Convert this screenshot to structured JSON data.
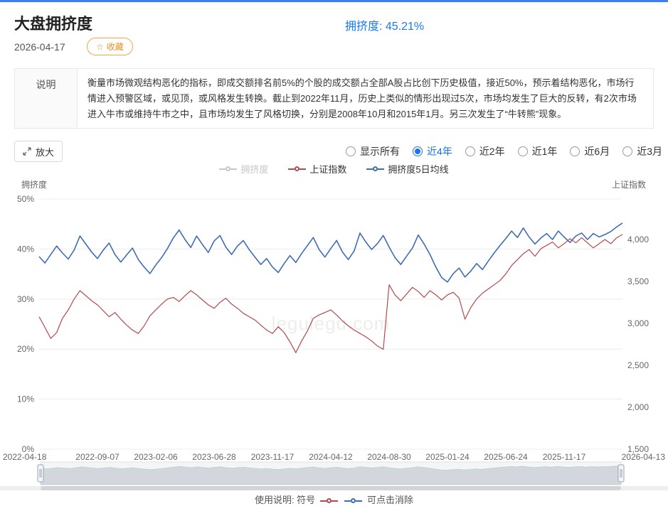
{
  "page": {
    "title": "大盘拥挤度",
    "date": "2026-04-17",
    "favorite": {
      "icon": "☆",
      "label": "收藏"
    },
    "header_value": "拥挤度: 45.21%",
    "accent_blue": "#1a7af8"
  },
  "description": {
    "label": "说明",
    "text": "衡量市场微观结构恶化的指标，即成交额排名前5%的个股的成交额占全部A股占比创下历史极值，接近50%，预示着结构恶化，市场行情进入预警区域，或见顶，或风格发生转换。截止到2022年11月，历史上类似的情形出现过5次，市场均发生了巨大的反转，有2次市场进入牛市或维持牛市之中，且市场均发生了风格切换，分别是2008年10月和2015年1月。另三次发生了“牛转熊”现象。"
  },
  "toolbar": {
    "zoom_label": "放大",
    "ranges": [
      {
        "label": "显示所有",
        "selected": false
      },
      {
        "label": "近4年",
        "selected": true
      },
      {
        "label": "近2年",
        "selected": false
      },
      {
        "label": "近1年",
        "selected": false
      },
      {
        "label": "近6月",
        "selected": false
      },
      {
        "label": "近3月",
        "selected": false
      }
    ]
  },
  "legend": [
    {
      "label": "拥挤度",
      "color": "#c6c6c6",
      "disabled": true
    },
    {
      "label": "上证指数",
      "color": "#b5494d",
      "disabled": false
    },
    {
      "label": "拥挤度5日均线",
      "color": "#3e6db5",
      "disabled": false
    }
  ],
  "chart_data": {
    "type": "line",
    "title": "大盘拥挤度",
    "watermark": "legulegu.com",
    "grid": true,
    "left_axis": {
      "label": "拥挤度",
      "min": 0,
      "max": 50,
      "ticks": [
        "0%",
        "10%",
        "20%",
        "30%",
        "40%",
        "50%"
      ]
    },
    "right_axis": {
      "label": "上证指数",
      "min": 1500,
      "max": 4483,
      "ticks": [
        "1,500",
        "2,000",
        "2,500",
        "3,000",
        "3,500",
        "4,000"
      ]
    },
    "x_labels": [
      "2022-04-18",
      "2022-09-07",
      "2023-02-06",
      "2023-06-28",
      "2023-11-17",
      "2024-04-12",
      "2024-08-30",
      "2025-01-24",
      "2025-06-24",
      "2025-11-17",
      "2026-04-13"
    ],
    "series": [
      {
        "name": "拥挤度5日均线",
        "axis": "left",
        "color": "#3e6db5",
        "width": 1.6,
        "values": [
          38.5,
          37.2,
          38.9,
          40.6,
          39.2,
          38.0,
          39.8,
          42.6,
          41.0,
          39.4,
          38.1,
          39.8,
          41.2,
          38.9,
          37.4,
          38.8,
          40.2,
          37.9,
          36.4,
          35.1,
          36.8,
          38.3,
          40.1,
          42.2,
          43.8,
          41.9,
          40.3,
          42.6,
          40.9,
          39.3,
          41.6,
          42.7,
          40.4,
          38.9,
          40.6,
          41.7,
          39.9,
          38.4,
          36.9,
          38.1,
          36.4,
          35.3,
          37.1,
          38.7,
          37.3,
          39.1,
          40.7,
          42.3,
          39.9,
          38.4,
          40.1,
          41.7,
          39.4,
          37.9,
          39.6,
          43.2,
          41.4,
          39.9,
          41.1,
          42.7,
          40.4,
          38.3,
          36.9,
          38.6,
          40.2,
          42.8,
          41.0,
          38.9,
          36.4,
          34.3,
          33.4,
          35.1,
          36.2,
          34.4,
          35.6,
          37.1,
          35.9,
          37.6,
          39.2,
          40.7,
          42.1,
          43.6,
          42.3,
          44.2,
          42.4,
          41.0,
          42.2,
          43.1,
          41.9,
          43.6,
          42.4,
          41.3,
          42.6,
          43.2,
          41.9,
          43.1,
          42.4,
          42.9,
          43.5,
          44.4,
          45.2
        ]
      },
      {
        "name": "上证指数",
        "axis": "right",
        "color": "#b5494d",
        "width": 1.2,
        "values": [
          3080,
          2950,
          2820,
          2890,
          3060,
          3160,
          3290,
          3390,
          3330,
          3270,
          3220,
          3150,
          3080,
          3130,
          3050,
          2980,
          2920,
          2880,
          2970,
          3090,
          3160,
          3230,
          3290,
          3310,
          3260,
          3330,
          3390,
          3340,
          3280,
          3220,
          3180,
          3250,
          3300,
          3230,
          3180,
          3120,
          3080,
          3040,
          2980,
          2920,
          2880,
          2960,
          2890,
          2780,
          2650,
          2790,
          2910,
          3060,
          3100,
          3130,
          3160,
          3100,
          3030,
          2970,
          2920,
          2880,
          2840,
          2790,
          2730,
          2690,
          3460,
          3340,
          3270,
          3350,
          3430,
          3380,
          3310,
          3390,
          3340,
          3280,
          3340,
          3370,
          3300,
          3050,
          3190,
          3290,
          3360,
          3410,
          3460,
          3510,
          3590,
          3690,
          3760,
          3830,
          3880,
          3800,
          3890,
          3930,
          3970,
          3900,
          3950,
          4010,
          3960,
          4020,
          3960,
          3900,
          3950,
          4000,
          3950,
          4020,
          4060
        ]
      }
    ]
  },
  "footer": {
    "prefix": "使用说明: 符号",
    "suffix": "可点击消除"
  }
}
